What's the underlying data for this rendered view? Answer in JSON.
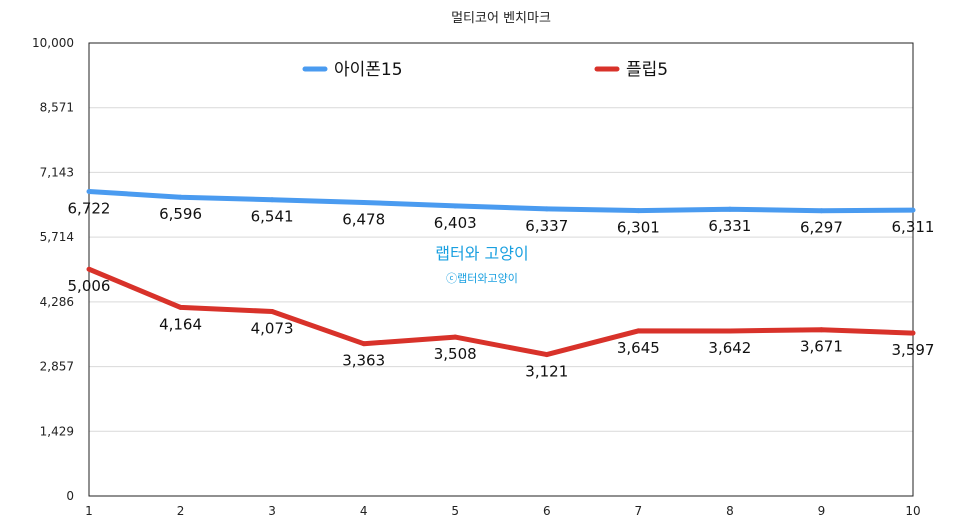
{
  "chart_data": {
    "type": "line",
    "title": "멀티코어 벤치마크",
    "xlabel": "",
    "ylabel": "",
    "x": [
      1,
      2,
      3,
      4,
      5,
      6,
      7,
      8,
      9,
      10
    ],
    "ylim": [
      0,
      10000
    ],
    "yticks": [
      "0",
      "1,429",
      "2,857",
      "4,286",
      "5,714",
      "7,143",
      "8,571",
      "10,000"
    ],
    "grid": true,
    "legend_position": "top",
    "series": [
      {
        "name": "아이폰15",
        "color": "#4a9bf0",
        "values": [
          6722,
          6596,
          6541,
          6478,
          6403,
          6337,
          6301,
          6331,
          6297,
          6311
        ],
        "labels": [
          "6,722",
          "6,596",
          "6,541",
          "6,478",
          "6,403",
          "6,337",
          "6,301",
          "6,331",
          "6,297",
          "6,311"
        ]
      },
      {
        "name": "플립5",
        "color": "#d8322a",
        "values": [
          5006,
          4164,
          4073,
          3363,
          3508,
          3121,
          3645,
          3642,
          3671,
          3597
        ],
        "labels": [
          "5,006",
          "4,164",
          "4,073",
          "3,363",
          "3,508",
          "3,121",
          "3,645",
          "3,642",
          "3,671",
          "3,597"
        ]
      }
    ]
  },
  "watermark": {
    "line1": "랩터와 고양이",
    "line2": "ⓒ랩터와고양이"
  }
}
